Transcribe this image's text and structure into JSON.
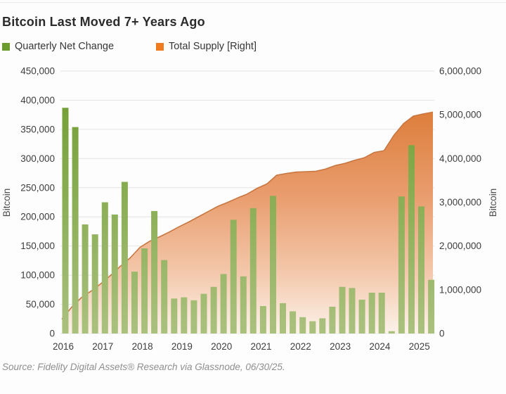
{
  "header": {
    "title": "Bitcoin Last Moved 7+ Years Ago"
  },
  "legend": {
    "quarterly": {
      "label": "Quarterly Net Change",
      "color": "#6d9b2b"
    },
    "supply": {
      "label": "Total Supply [Right]",
      "color": "#f07c21"
    }
  },
  "footer": {
    "source": "Source: Fidelity Digital Assets® Research via Glassnode, 06/30/25."
  },
  "chart_data": {
    "type": "bar+area",
    "title": "Bitcoin Last Moved 7+ Years Ago",
    "left_axis": {
      "label": "Bitcoin",
      "min": 0,
      "max": 450000,
      "step": 50000
    },
    "right_axis": {
      "label": "Bitcoin",
      "min": 0,
      "max": 6000000,
      "step": 1000000
    },
    "x_axis": {
      "years": [
        2016,
        2017,
        2018,
        2019,
        2020,
        2021,
        2022,
        2023,
        2024,
        2025
      ]
    },
    "grid": true,
    "legend_position": "top-left",
    "bars": {
      "name": "Quarterly Net Change",
      "axis": "left",
      "quarters": [
        "2016 Q1",
        "2016 Q2",
        "2016 Q3",
        "2016 Q4",
        "2017 Q1",
        "2017 Q2",
        "2017 Q3",
        "2017 Q4",
        "2018 Q1",
        "2018 Q2",
        "2018 Q3",
        "2018 Q4",
        "2019 Q1",
        "2019 Q2",
        "2019 Q3",
        "2019 Q4",
        "2020 Q1",
        "2020 Q2",
        "2020 Q3",
        "2020 Q4",
        "2021 Q1",
        "2021 Q2",
        "2021 Q3",
        "2021 Q4",
        "2022 Q1",
        "2022 Q2",
        "2022 Q3",
        "2022 Q4",
        "2023 Q1",
        "2023 Q2",
        "2023 Q3",
        "2023 Q4",
        "2024 Q1",
        "2024 Q2",
        "2024 Q3",
        "2024 Q4",
        "2025 Q1",
        "2025 Q2"
      ],
      "values": [
        387000,
        354000,
        187000,
        170000,
        225000,
        204000,
        260000,
        106000,
        146000,
        210000,
        126000,
        60000,
        62000,
        57000,
        68000,
        80000,
        102000,
        195000,
        98000,
        215000,
        47000,
        236000,
        52000,
        38000,
        28000,
        21000,
        26000,
        46000,
        80000,
        78000,
        58000,
        70000,
        70000,
        4000,
        235000,
        323000,
        218000,
        92000
      ]
    },
    "area": {
      "name": "Total Supply [Right]",
      "axis": "right",
      "x_start": 2016.0,
      "x_step": 0.25,
      "values": [
        330000,
        600000,
        820000,
        970000,
        1140000,
        1330000,
        1540000,
        1730000,
        1970000,
        2110000,
        2210000,
        2320000,
        2440000,
        2550000,
        2670000,
        2790000,
        2910000,
        3000000,
        3100000,
        3190000,
        3320000,
        3420000,
        3620000,
        3660000,
        3690000,
        3700000,
        3710000,
        3760000,
        3840000,
        3890000,
        3960000,
        4020000,
        4140000,
        4180000,
        4530000,
        4800000,
        4970000,
        5020000,
        5060000
      ]
    },
    "colors": {
      "bar_top": "#6d9b2e",
      "bar_bottom": "#aac17e",
      "area_line": "#c8763f",
      "area_top": "#dd7e3c",
      "area_mid": "#e99d6e",
      "area_soft": "#f3c7aa",
      "area_bottom": "#fcf2ea",
      "grid": "#e4e4e4",
      "tick_text": "#3d3d3d",
      "axis_title_text": "#4a4a4a"
    }
  }
}
